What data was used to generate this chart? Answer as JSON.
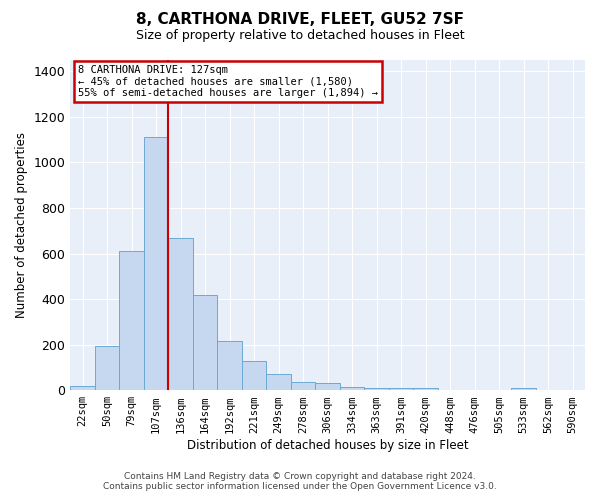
{
  "title": "8, CARTHONA DRIVE, FLEET, GU52 7SF",
  "subtitle": "Size of property relative to detached houses in Fleet",
  "xlabel": "Distribution of detached houses by size in Fleet",
  "ylabel": "Number of detached properties",
  "annotation_title": "8 CARTHONA DRIVE: 127sqm",
  "annotation_line1": "← 45% of detached houses are smaller (1,580)",
  "annotation_line2": "55% of semi-detached houses are larger (1,894) →",
  "footer_line1": "Contains HM Land Registry data © Crown copyright and database right 2024.",
  "footer_line2": "Contains public sector information licensed under the Open Government Licence v3.0.",
  "bar_color": "#c5d8f0",
  "bar_edge_color": "#6aaad4",
  "vline_color": "#cc0000",
  "annotation_edge_color": "#cc0000",
  "background_color": "#e8eff8",
  "grid_color": "#ffffff",
  "categories": [
    "22sqm",
    "50sqm",
    "79sqm",
    "107sqm",
    "136sqm",
    "164sqm",
    "192sqm",
    "221sqm",
    "249sqm",
    "278sqm",
    "306sqm",
    "334sqm",
    "363sqm",
    "391sqm",
    "420sqm",
    "448sqm",
    "476sqm",
    "505sqm",
    "533sqm",
    "562sqm",
    "590sqm"
  ],
  "values": [
    20,
    195,
    610,
    1110,
    670,
    420,
    215,
    130,
    73,
    35,
    30,
    15,
    10,
    10,
    10,
    0,
    0,
    0,
    10,
    0,
    0
  ],
  "vline_x": 3.5,
  "ylim": [
    0,
    1450
  ],
  "yticks": [
    0,
    200,
    400,
    600,
    800,
    1000,
    1200,
    1400
  ]
}
